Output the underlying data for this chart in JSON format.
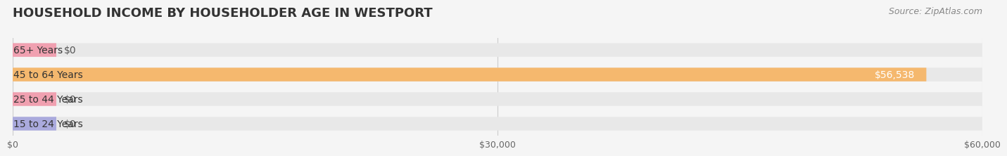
{
  "title": "HOUSEHOLD INCOME BY HOUSEHOLDER AGE IN WESTPORT",
  "source": "Source: ZipAtlas.com",
  "categories": [
    "15 to 24 Years",
    "25 to 44 Years",
    "45 to 64 Years",
    "65+ Years"
  ],
  "values": [
    0,
    0,
    56538,
    0
  ],
  "bar_colors": [
    "#aaaadd",
    "#f0a0b0",
    "#f5b86e",
    "#f0a0b0"
  ],
  "bar_label_colors": [
    "#555555",
    "#555555",
    "#ffffff",
    "#555555"
  ],
  "background_color": "#f5f5f5",
  "bar_bg_color": "#e8e8e8",
  "xlim": [
    0,
    60000
  ],
  "xticks": [
    0,
    30000,
    60000
  ],
  "xtick_labels": [
    "$0",
    "$30,000",
    "$60,000"
  ],
  "bar_height": 0.55,
  "bar_value_labels": [
    "$0",
    "$0",
    "$56,538",
    "$0"
  ],
  "title_fontsize": 13,
  "source_fontsize": 9,
  "label_fontsize": 10,
  "tick_fontsize": 9
}
